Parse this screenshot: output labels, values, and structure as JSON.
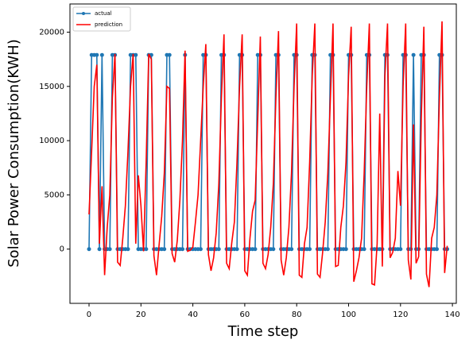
{
  "chart_data": {
    "type": "line",
    "xlabel": "Time step",
    "ylabel": "Solar Power Consumption(KWH)",
    "x": [
      0,
      1,
      2,
      3,
      4,
      5,
      6,
      7,
      8,
      9,
      10,
      11,
      12,
      13,
      14,
      15,
      16,
      17,
      18,
      19,
      20,
      21,
      22,
      23,
      24,
      25,
      26,
      27,
      28,
      29,
      30,
      31,
      32,
      33,
      34,
      35,
      36,
      37,
      38,
      39,
      40,
      41,
      42,
      43,
      44,
      45,
      46,
      47,
      48,
      49,
      50,
      51,
      52,
      53,
      54,
      55,
      56,
      57,
      58,
      59,
      60,
      61,
      62,
      63,
      64,
      65,
      66,
      67,
      68,
      69,
      70,
      71,
      72,
      73,
      74,
      75,
      76,
      77,
      78,
      79,
      80,
      81,
      82,
      83,
      84,
      85,
      86,
      87,
      88,
      89,
      90,
      91,
      92,
      93,
      94,
      95,
      96,
      97,
      98,
      99,
      100,
      101,
      102,
      103,
      104,
      105,
      106,
      107,
      108,
      109,
      110,
      111,
      112,
      113,
      114,
      115,
      116,
      117,
      118,
      119,
      120,
      121,
      122,
      123,
      124,
      125,
      126,
      127,
      128,
      129,
      130,
      131,
      132,
      133,
      134,
      135,
      136,
      137,
      138
    ],
    "series": [
      {
        "name": "actual",
        "color": "#1f77b4",
        "marker": true,
        "values": [
          0,
          17900,
          17900,
          17900,
          0,
          17900,
          0,
          0,
          0,
          17900,
          17900,
          0,
          0,
          0,
          0,
          0,
          17900,
          17900,
          17900,
          0,
          0,
          0,
          0,
          17900,
          17900,
          0,
          0,
          0,
          0,
          0,
          17900,
          17900,
          0,
          0,
          0,
          0,
          0,
          17900,
          0,
          0,
          0,
          0,
          0,
          0,
          17900,
          17900,
          0,
          0,
          0,
          0,
          0,
          17900,
          17900,
          0,
          0,
          0,
          0,
          0,
          17900,
          17900,
          0,
          0,
          0,
          0,
          0,
          17900,
          17900,
          0,
          0,
          0,
          0,
          0,
          17900,
          17900,
          0,
          0,
          0,
          0,
          0,
          17900,
          17900,
          0,
          0,
          0,
          0,
          0,
          17900,
          17900,
          0,
          0,
          0,
          0,
          0,
          17900,
          17900,
          0,
          0,
          0,
          0,
          0,
          17900,
          17900,
          0,
          0,
          0,
          0,
          0,
          17900,
          17900,
          0,
          0,
          0,
          0,
          0,
          17900,
          17900,
          0,
          0,
          0,
          0,
          0,
          17900,
          17900,
          0,
          0,
          17900,
          0,
          0,
          17900,
          17900,
          0,
          0,
          0,
          0,
          0,
          17900,
          17900,
          0,
          0
        ]
      },
      {
        "name": "prediction",
        "color": "#ff0000",
        "marker": false,
        "values": [
          3200,
          9000,
          15000,
          17000,
          500,
          5800,
          -2400,
          2000,
          5000,
          14000,
          18000,
          -1200,
          -1500,
          1000,
          4000,
          9000,
          15000,
          18000,
          500,
          6800,
          4000,
          -200,
          8000,
          18000,
          17500,
          -600,
          -2400,
          400,
          3000,
          7000,
          15000,
          14800,
          -400,
          -1200,
          800,
          4500,
          10000,
          18300,
          -200,
          -100,
          200,
          2500,
          5000,
          10000,
          15000,
          18900,
          -500,
          -2000,
          -800,
          1500,
          6000,
          14000,
          19800,
          -1300,
          -1800,
          600,
          2500,
          8000,
          15000,
          19800,
          -2000,
          -2400,
          1000,
          3500,
          4500,
          12000,
          19600,
          -1300,
          -1800,
          -500,
          2000,
          6000,
          14000,
          20100,
          -1000,
          -2400,
          -800,
          2000,
          7000,
          15000,
          20800,
          -2400,
          -2600,
          500,
          2000,
          8000,
          16000,
          20800,
          -2300,
          -2600,
          -300,
          2500,
          7000,
          14000,
          20800,
          -1600,
          -1500,
          2000,
          4000,
          8000,
          16000,
          20500,
          -3000,
          -2000,
          -800,
          1000,
          7000,
          15000,
          20800,
          -3200,
          -3300,
          500,
          12500,
          -1600,
          16000,
          20800,
          -800,
          -300,
          1000,
          7200,
          4000,
          15000,
          20800,
          -1000,
          -2800,
          11500,
          -1300,
          -700,
          12000,
          20500,
          -2300,
          -3500,
          1000,
          2000,
          5000,
          14000,
          21000,
          -2200,
          300
        ]
      }
    ],
    "xlim": [
      -7.35,
      141.5
    ],
    "xticks": [
      0,
      20,
      40,
      60,
      80,
      100,
      120,
      140
    ],
    "ylim": [
      -5000,
      22600
    ],
    "yticks": [
      0,
      5000,
      10000,
      15000,
      20000
    ],
    "legend": "upper left",
    "grid": false
  }
}
